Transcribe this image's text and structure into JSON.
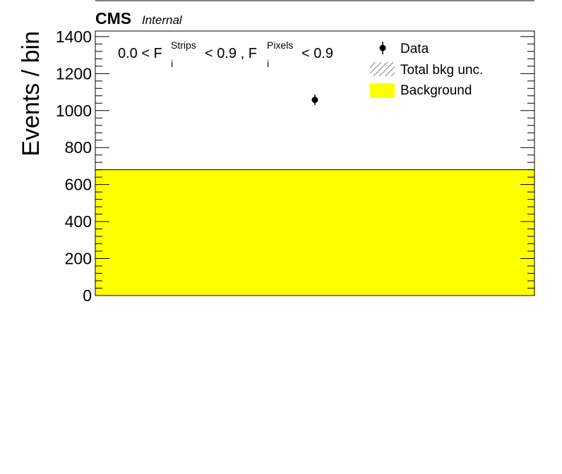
{
  "header": {
    "experiment": "CMS",
    "status": "Internal"
  },
  "chart_data": {
    "type": "bar",
    "ylabel": "Events / bin",
    "ylim": [
      0,
      1430
    ],
    "ytick_labels": [
      "0",
      "200",
      "400",
      "600",
      "800",
      "1000",
      "1200",
      "1400"
    ],
    "ytick_values": [
      0,
      200,
      400,
      600,
      800,
      1000,
      1200,
      1400
    ],
    "x_range": [
      0,
      1
    ],
    "selection": {
      "prefix": "0.0 < F",
      "f1_sub": "i",
      "f1_sup": "Strips",
      "mid": "< 0.9 , F",
      "f2_sub": "i",
      "f2_sup": "Pixels",
      "suffix": "< 0.9"
    },
    "background": {
      "name": "Background",
      "value": 680,
      "color": "#ffff00"
    },
    "data": {
      "name": "Data",
      "x": 0.5,
      "value": 1058,
      "error": 28
    },
    "legend": {
      "placement": "top-right",
      "entries": [
        {
          "label": "Data",
          "style": "marker"
        },
        {
          "label": "Total bkg unc.",
          "style": "hatch"
        },
        {
          "label": "Background",
          "style": "fill"
        }
      ]
    }
  }
}
